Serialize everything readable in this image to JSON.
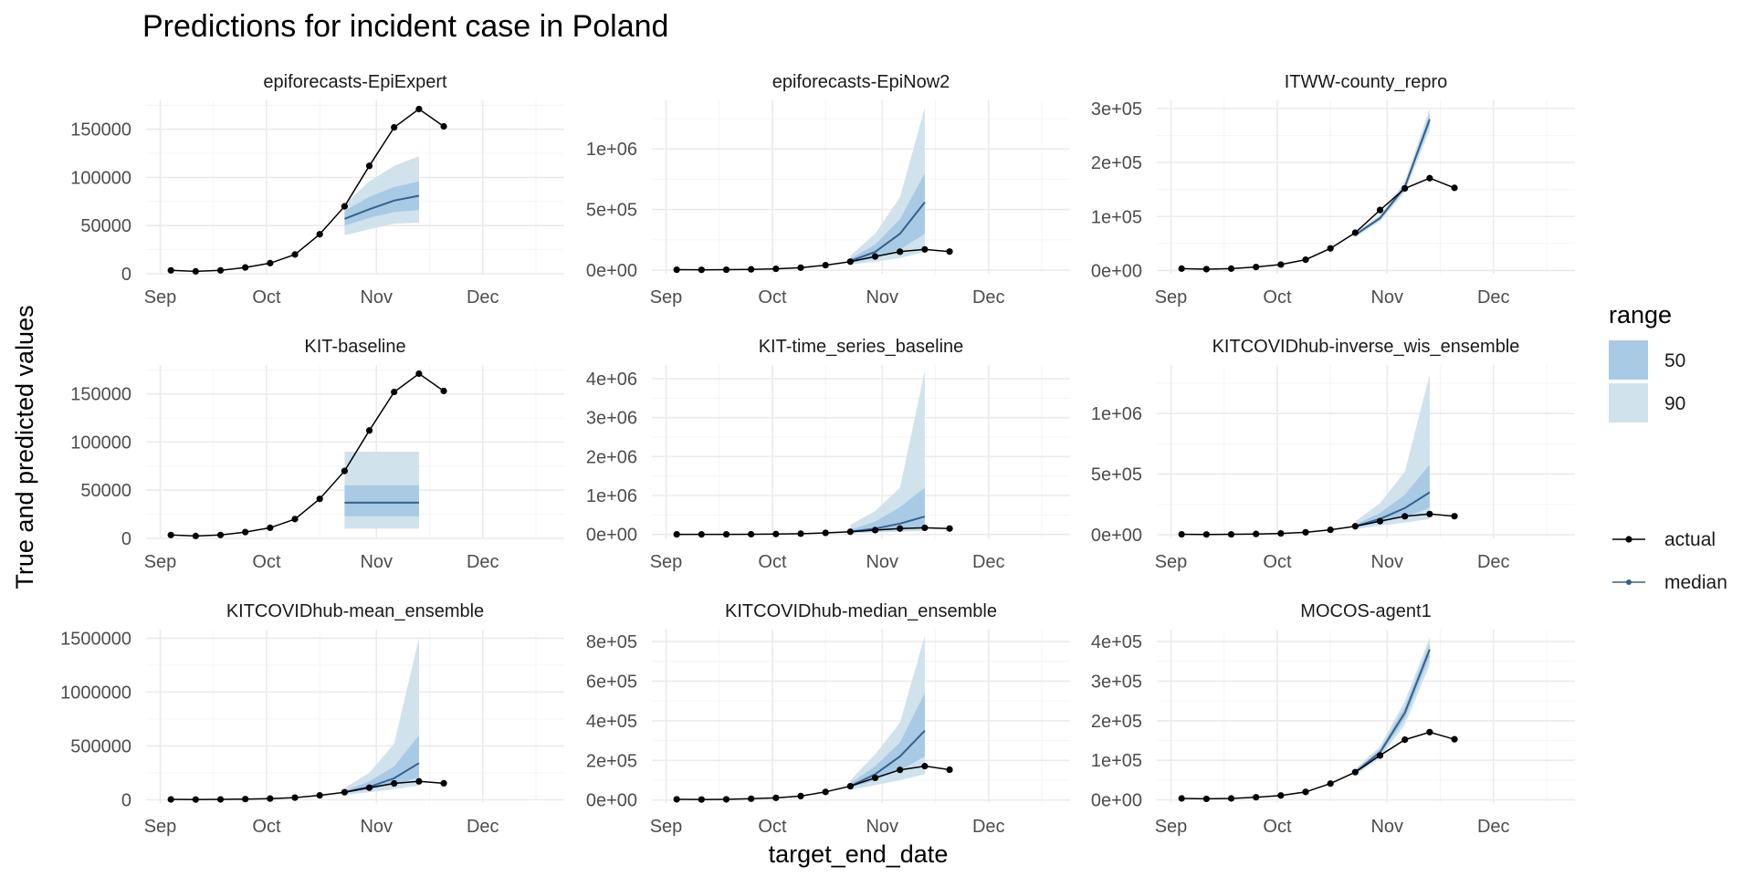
{
  "chart_data": {
    "type": "line",
    "title": "Predictions for incident case in Poland",
    "xlabel": "target_end_date",
    "ylabel": "True and predicted values",
    "x_ticks": [
      {
        "date": "2021-09-01",
        "label": "Sep"
      },
      {
        "date": "2021-10-01",
        "label": "Oct"
      },
      {
        "date": "2021-11-01",
        "label": "Nov"
      },
      {
        "date": "2021-12-01",
        "label": "Dec"
      }
    ],
    "xlim": [
      "2021-08-28",
      "2021-12-24"
    ],
    "grid": true,
    "colors": {
      "actual": "#000000",
      "median": "#35608d",
      "range_50": "#a8cae4",
      "range_90": "#d0e2ec"
    },
    "legend": {
      "position": "right",
      "range_title": "range",
      "range_items": [
        "50",
        "90"
      ],
      "line_items": [
        "actual",
        "median"
      ]
    },
    "actual": {
      "dates": [
        "2021-09-04",
        "2021-09-11",
        "2021-09-18",
        "2021-09-25",
        "2021-10-02",
        "2021-10-09",
        "2021-10-16",
        "2021-10-23",
        "2021-10-30",
        "2021-11-06",
        "2021-11-13",
        "2021-11-20"
      ],
      "values": [
        3500,
        2500,
        3500,
        6500,
        11000,
        20000,
        41000,
        70000,
        112000,
        152000,
        171000,
        153000
      ]
    },
    "forecast_dates": [
      "2021-10-23",
      "2021-10-30",
      "2021-11-06",
      "2021-11-13"
    ],
    "panels": [
      {
        "name": "epiforecasts-EpiExpert",
        "ylim": [
          0,
          180000
        ],
        "y_ticks": [
          {
            "value": 0,
            "label": "0"
          },
          {
            "value": 50000,
            "label": "50000"
          },
          {
            "value": 100000,
            "label": "100000"
          },
          {
            "value": 150000,
            "label": "150000"
          }
        ],
        "median": [
          57000,
          67000,
          76000,
          81000
        ],
        "q50": [
          [
            50000,
            65000
          ],
          [
            58000,
            80000
          ],
          [
            64000,
            90000
          ],
          [
            66000,
            96000
          ]
        ],
        "q90": [
          [
            40000,
            72000
          ],
          [
            46000,
            96000
          ],
          [
            52000,
            112000
          ],
          [
            53000,
            122000
          ]
        ]
      },
      {
        "name": "epiforecasts-EpiNow2",
        "ylim": [
          -30000,
          1400000
        ],
        "y_ticks": [
          {
            "value": 0,
            "label": "0e+00"
          },
          {
            "value": 500000,
            "label": "5e+05"
          },
          {
            "value": 1000000,
            "label": "1e+06"
          }
        ],
        "median": [
          75000,
          150000,
          300000,
          560000
        ],
        "q50": [
          [
            60000,
            95000
          ],
          [
            100000,
            210000
          ],
          [
            170000,
            420000
          ],
          [
            300000,
            800000
          ]
        ],
        "q90": [
          [
            45000,
            120000
          ],
          [
            70000,
            300000
          ],
          [
            100000,
            600000
          ],
          [
            150000,
            1340000
          ]
        ]
      },
      {
        "name": "ITWW-county_repro",
        "ylim": [
          -6000,
          315000
        ],
        "y_ticks": [
          {
            "value": 0,
            "label": "0e+00"
          },
          {
            "value": 100000,
            "label": "1e+05"
          },
          {
            "value": 200000,
            "label": "2e+05"
          },
          {
            "value": 300000,
            "label": "3e+05"
          }
        ],
        "median": [
          66000,
          97000,
          155000,
          280000
        ],
        "q50": [
          [
            64000,
            68000
          ],
          [
            94000,
            100000
          ],
          [
            150000,
            160000
          ],
          [
            270000,
            290000
          ]
        ],
        "q90": [
          [
            62000,
            70000
          ],
          [
            91000,
            103000
          ],
          [
            145000,
            165000
          ],
          [
            260000,
            300000
          ]
        ]
      },
      {
        "name": "KIT-baseline",
        "ylim": [
          0,
          180000
        ],
        "y_ticks": [
          {
            "value": 0,
            "label": "0"
          },
          {
            "value": 50000,
            "label": "50000"
          },
          {
            "value": 100000,
            "label": "100000"
          },
          {
            "value": 150000,
            "label": "150000"
          }
        ],
        "median": [
          37000,
          37000,
          37000,
          37000
        ],
        "q50": [
          [
            23000,
            55000
          ],
          [
            23000,
            55000
          ],
          [
            23000,
            55000
          ],
          [
            23000,
            55000
          ]
        ],
        "q90": [
          [
            10000,
            90000
          ],
          [
            10000,
            90000
          ],
          [
            10000,
            90000
          ],
          [
            10000,
            90000
          ]
        ]
      },
      {
        "name": "KIT-time_series_baseline",
        "ylim": [
          -100000,
          4350000
        ],
        "y_ticks": [
          {
            "value": 0,
            "label": "0e+00"
          },
          {
            "value": 1000000,
            "label": "1e+06"
          },
          {
            "value": 2000000,
            "label": "2e+06"
          },
          {
            "value": 3000000,
            "label": "3e+06"
          },
          {
            "value": 4000000,
            "label": "4e+06"
          }
        ],
        "median": [
          70000,
          150000,
          280000,
          460000
        ],
        "q50": [
          [
            50000,
            120000
          ],
          [
            80000,
            330000
          ],
          [
            120000,
            700000
          ],
          [
            180000,
            1200000
          ]
        ],
        "q90": [
          [
            30000,
            250000
          ],
          [
            50000,
            600000
          ],
          [
            70000,
            1200000
          ],
          [
            90000,
            4200000
          ]
        ]
      },
      {
        "name": "KITCOVIDhub-inverse_wis_ensemble",
        "ylim": [
          -30000,
          1400000
        ],
        "y_ticks": [
          {
            "value": 0,
            "label": "0e+00"
          },
          {
            "value": 500000,
            "label": "5e+05"
          },
          {
            "value": 1000000,
            "label": "1e+06"
          }
        ],
        "median": [
          70000,
          130000,
          220000,
          350000
        ],
        "q50": [
          [
            60000,
            85000
          ],
          [
            100000,
            180000
          ],
          [
            150000,
            330000
          ],
          [
            220000,
            580000
          ]
        ],
        "q90": [
          [
            45000,
            110000
          ],
          [
            75000,
            260000
          ],
          [
            100000,
            520000
          ],
          [
            130000,
            1320000
          ]
        ]
      },
      {
        "name": "KITCOVIDhub-mean_ensemble",
        "ylim": [
          -30000,
          1580000
        ],
        "y_ticks": [
          {
            "value": 0,
            "label": "0"
          },
          {
            "value": 500000,
            "label": "500000"
          },
          {
            "value": 1000000,
            "label": "1000000"
          },
          {
            "value": 1500000,
            "label": "1500000"
          }
        ],
        "median": [
          70000,
          120000,
          200000,
          340000
        ],
        "q50": [
          [
            60000,
            85000
          ],
          [
            95000,
            170000
          ],
          [
            140000,
            310000
          ],
          [
            210000,
            600000
          ]
        ],
        "q90": [
          [
            45000,
            110000
          ],
          [
            70000,
            250000
          ],
          [
            100000,
            520000
          ],
          [
            130000,
            1500000
          ]
        ]
      },
      {
        "name": "KITCOVIDhub-median_ensemble",
        "ylim": [
          -15000,
          860000
        ],
        "y_ticks": [
          {
            "value": 0,
            "label": "0e+00"
          },
          {
            "value": 200000,
            "label": "2e+05"
          },
          {
            "value": 400000,
            "label": "4e+05"
          },
          {
            "value": 600000,
            "label": "6e+05"
          },
          {
            "value": 800000,
            "label": "8e+05"
          }
        ],
        "median": [
          70000,
          130000,
          220000,
          350000
        ],
        "q50": [
          [
            62000,
            85000
          ],
          [
            100000,
            170000
          ],
          [
            150000,
            290000
          ],
          [
            220000,
            540000
          ]
        ],
        "q90": [
          [
            50000,
            100000
          ],
          [
            75000,
            230000
          ],
          [
            100000,
            390000
          ],
          [
            130000,
            830000
          ]
        ]
      },
      {
        "name": "MOCOS-agent1",
        "ylim": [
          -8000,
          430000
        ],
        "y_ticks": [
          {
            "value": 0,
            "label": "0e+00"
          },
          {
            "value": 100000,
            "label": "1e+05"
          },
          {
            "value": 200000,
            "label": "2e+05"
          },
          {
            "value": 300000,
            "label": "3e+05"
          },
          {
            "value": 400000,
            "label": "4e+05"
          }
        ],
        "median": [
          70000,
          120000,
          220000,
          380000
        ],
        "q50": [
          [
            66000,
            74000
          ],
          [
            112000,
            128000
          ],
          [
            205000,
            235000
          ],
          [
            360000,
            395000
          ]
        ],
        "q90": [
          [
            62000,
            78000
          ],
          [
            105000,
            135000
          ],
          [
            190000,
            250000
          ],
          [
            340000,
            410000
          ]
        ]
      }
    ]
  }
}
